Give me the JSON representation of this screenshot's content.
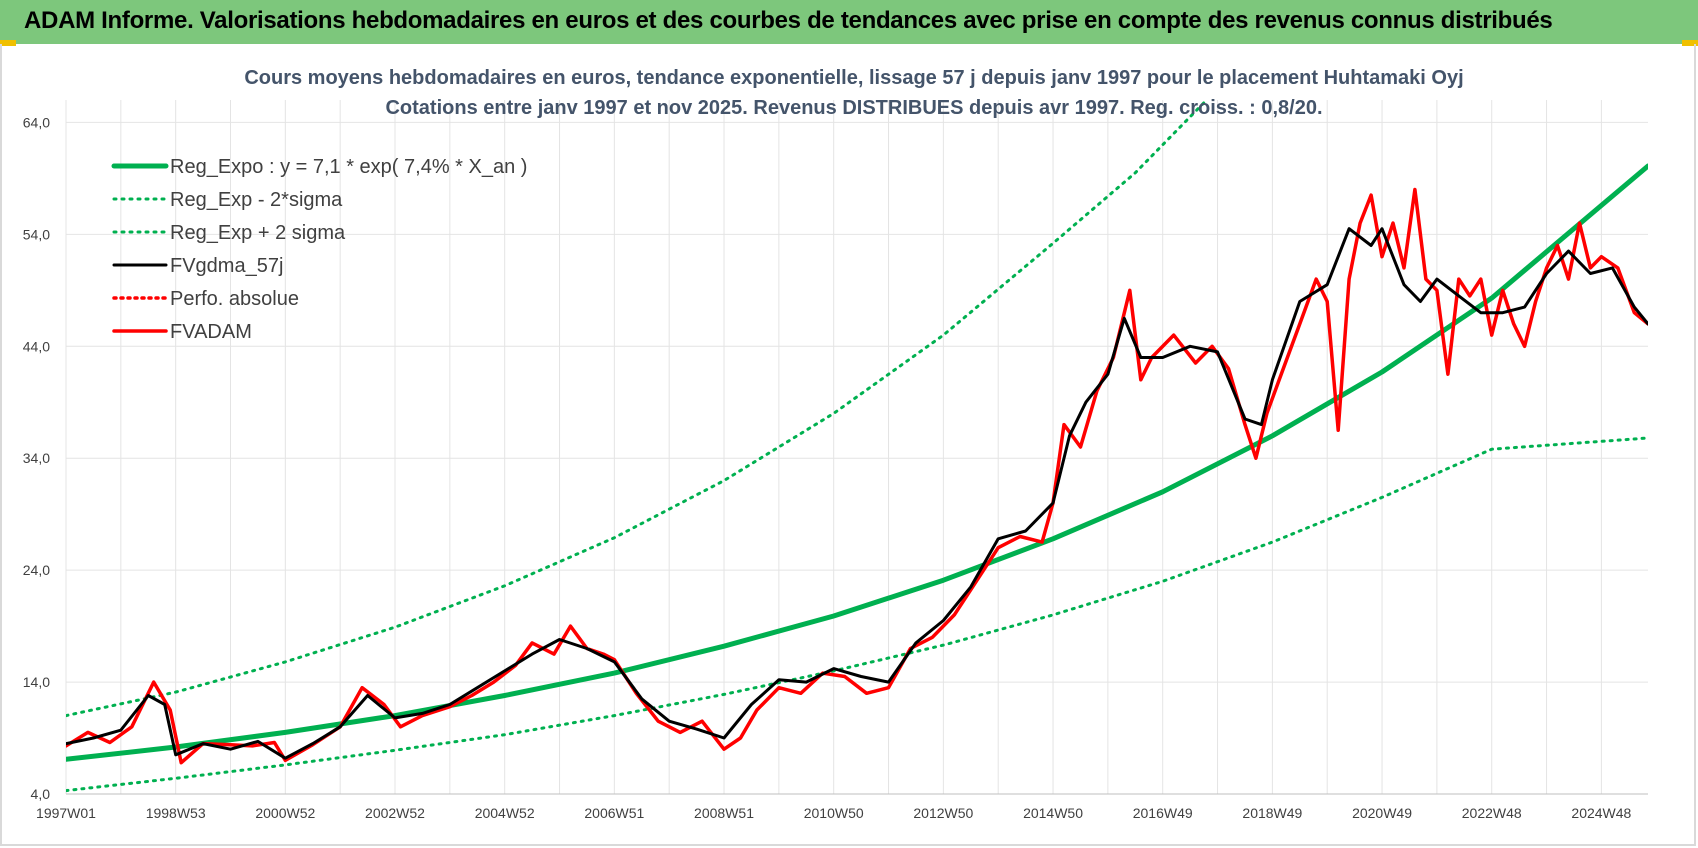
{
  "banner": {
    "title": "ADAM Informe. Valorisations hebdomadaires en euros et des courbes de tendances avec prise en compte des revenus connus distribués",
    "color": "#7dc77c"
  },
  "chart_data": {
    "type": "line",
    "title": "Cours moyens hebdomadaires en euros, tendance exponentielle, lissage 57 j depuis janv 1997 pour le placement Huhtamaki Oyj",
    "subtitle": "Cotations entre janv 1997 et nov 2025. Revenus DISTRIBUES depuis avr 1997. Reg. croiss. : 0,8/20.",
    "xlabel": "",
    "ylabel": "",
    "ylim": [
      4,
      66
    ],
    "xlim": [
      1997.0,
      2025.85
    ],
    "grid": true,
    "legend_position": "top-left",
    "y_ticks": [
      "4,0",
      "14,0",
      "24,0",
      "34,0",
      "44,0",
      "54,0",
      "64,0"
    ],
    "y_tick_values": [
      4,
      14,
      24,
      34,
      44,
      54,
      64
    ],
    "x_ticks": [
      "1997W01",
      "1998W53",
      "2000W52",
      "2002W52",
      "2004W52",
      "2006W51",
      "2008W51",
      "2010W50",
      "2012W50",
      "2014W50",
      "2016W49",
      "2018W49",
      "2020W49",
      "2022W48",
      "2024W48"
    ],
    "x_tick_values": [
      1997.0,
      1999.0,
      2001.0,
      2003.0,
      2005.0,
      2007.0,
      2009.0,
      2011.0,
      2013.0,
      2015.0,
      2017.0,
      2019.0,
      2021.0,
      2023.0,
      2025.0
    ],
    "series": [
      {
        "name": "Reg_Expo : y = 7,1 * exp( 7,4% *  X_an )",
        "color": "#00b050",
        "style": "solid",
        "x": [
          1997,
          1999,
          2001,
          2003,
          2005,
          2007,
          2009,
          2011,
          2013,
          2015,
          2017,
          2019,
          2021,
          2023,
          2025.85
        ],
        "values": [
          7.1,
          8.2,
          9.5,
          11.0,
          12.8,
          14.8,
          17.2,
          19.9,
          23.1,
          26.8,
          31.0,
          36.0,
          41.7,
          48.3,
          60.1
        ]
      },
      {
        "name": "Reg_Exp - 2*sigma",
        "color": "#00b050",
        "style": "dotted",
        "x": [
          1997,
          1999,
          2001,
          2003,
          2005,
          2007,
          2009,
          2011,
          2013,
          2015,
          2017,
          2019,
          2021,
          2023,
          2025.85
        ],
        "values": [
          4.3,
          5.4,
          6.6,
          7.9,
          9.3,
          11.0,
          12.9,
          15.0,
          17.3,
          20.0,
          23.0,
          26.5,
          30.5,
          34.8,
          35.8
        ]
      },
      {
        "name": "Reg_Exp + 2 sigma",
        "color": "#00b050",
        "style": "dotted",
        "x": [
          1997,
          1999,
          2001,
          2003,
          2005,
          2007,
          2009,
          2011,
          2013,
          2015,
          2016.5,
          2017.8
        ],
        "values": [
          11.0,
          13.1,
          15.8,
          18.9,
          22.6,
          26.9,
          32.0,
          38.0,
          45.0,
          53.2,
          59.5,
          66.0
        ]
      },
      {
        "name": "FVgdma_57j",
        "color": "#000000",
        "style": "solid",
        "x": [
          1997.0,
          1997.5,
          1998.0,
          1998.5,
          1998.8,
          1999.0,
          1999.5,
          2000.0,
          2000.5,
          2001.0,
          2001.5,
          2002.0,
          2002.5,
          2003.0,
          2003.5,
          2004.0,
          2004.5,
          2005.0,
          2005.5,
          2006.0,
          2006.5,
          2007.0,
          2007.5,
          2008.0,
          2008.5,
          2009.0,
          2009.5,
          2010.0,
          2010.5,
          2011.0,
          2011.5,
          2012.0,
          2012.5,
          2013.0,
          2013.5,
          2014.0,
          2014.5,
          2015.0,
          2015.3,
          2015.6,
          2016.0,
          2016.3,
          2016.6,
          2017.0,
          2017.5,
          2018.0,
          2018.5,
          2018.8,
          2019.0,
          2019.5,
          2020.0,
          2020.4,
          2020.8,
          2021.0,
          2021.4,
          2021.7,
          2022.0,
          2022.4,
          2022.8,
          2023.2,
          2023.6,
          2024.0,
          2024.4,
          2024.8,
          2025.2,
          2025.6,
          2025.85
        ],
        "values": [
          8.5,
          9.0,
          9.7,
          12.8,
          12.0,
          7.5,
          8.5,
          8.0,
          8.7,
          7.2,
          8.5,
          10.0,
          12.8,
          10.8,
          11.2,
          12.0,
          13.5,
          15.0,
          16.5,
          17.8,
          17.0,
          15.8,
          12.5,
          10.5,
          9.8,
          9.0,
          12.0,
          14.2,
          14.0,
          15.2,
          14.5,
          14.0,
          17.5,
          19.5,
          22.5,
          26.8,
          27.5,
          30.0,
          36.0,
          39.0,
          41.5,
          46.5,
          43.0,
          43.0,
          44.0,
          43.5,
          37.5,
          37.0,
          41.0,
          48.0,
          49.5,
          54.5,
          53.0,
          54.5,
          49.5,
          48.0,
          50.0,
          48.5,
          47.0,
          47.0,
          47.5,
          50.5,
          52.5,
          50.5,
          51.0,
          47.5,
          46.0
        ]
      },
      {
        "name": "Perfo. absolue",
        "color": "#ff0000",
        "style": "dotted",
        "x": [],
        "values": []
      },
      {
        "name": "FVADAM",
        "color": "#ff0000",
        "style": "solid",
        "x": [
          1997.0,
          1997.4,
          1997.8,
          1998.2,
          1998.6,
          1998.9,
          1999.1,
          1999.5,
          2000.0,
          2000.4,
          2000.8,
          2001.0,
          2001.5,
          2002.0,
          2002.4,
          2002.8,
          2003.1,
          2003.5,
          2004.0,
          2004.4,
          2004.8,
          2005.2,
          2005.5,
          2005.9,
          2006.2,
          2006.5,
          2006.8,
          2007.0,
          2007.4,
          2007.8,
          2008.2,
          2008.6,
          2009.0,
          2009.3,
          2009.6,
          2010.0,
          2010.4,
          2010.8,
          2011.2,
          2011.6,
          2012.0,
          2012.4,
          2012.8,
          2013.2,
          2013.6,
          2014.0,
          2014.4,
          2014.8,
          2015.0,
          2015.2,
          2015.5,
          2015.8,
          2016.1,
          2016.4,
          2016.6,
          2016.8,
          2017.2,
          2017.6,
          2017.9,
          2018.2,
          2018.5,
          2018.7,
          2018.9,
          2019.2,
          2019.5,
          2019.8,
          2020.0,
          2020.2,
          2020.4,
          2020.6,
          2020.8,
          2021.0,
          2021.2,
          2021.4,
          2021.6,
          2021.8,
          2022.0,
          2022.2,
          2022.4,
          2022.6,
          2022.8,
          2023.0,
          2023.2,
          2023.4,
          2023.6,
          2023.8,
          2024.0,
          2024.2,
          2024.4,
          2024.6,
          2024.8,
          2025.0,
          2025.3,
          2025.6,
          2025.85
        ],
        "values": [
          8.3,
          9.5,
          8.6,
          10.0,
          14.0,
          11.5,
          6.8,
          8.5,
          8.4,
          8.3,
          8.6,
          7.0,
          8.4,
          10.0,
          13.5,
          12.0,
          10.0,
          11.0,
          11.8,
          12.8,
          14.0,
          15.5,
          17.5,
          16.5,
          19.0,
          17.0,
          16.5,
          16.0,
          13.0,
          10.5,
          9.5,
          10.5,
          8.0,
          9.0,
          11.5,
          13.5,
          13.0,
          14.8,
          14.5,
          13.0,
          13.5,
          17.0,
          18.0,
          20.0,
          23.0,
          26.0,
          27.0,
          26.5,
          30.0,
          37.0,
          35.0,
          40.0,
          43.0,
          49.0,
          41.0,
          43.0,
          45.0,
          42.5,
          44.0,
          42.0,
          37.0,
          34.0,
          38.0,
          42.0,
          46.0,
          50.0,
          48.0,
          36.5,
          50.0,
          55.0,
          57.5,
          52.0,
          55.0,
          51.0,
          58.0,
          50.0,
          49.0,
          41.5,
          50.0,
          48.5,
          50.0,
          45.0,
          49.0,
          46.0,
          44.0,
          48.0,
          51.0,
          53.0,
          50.0,
          55.0,
          51.0,
          52.0,
          51.0,
          47.0,
          46.0
        ]
      }
    ]
  }
}
